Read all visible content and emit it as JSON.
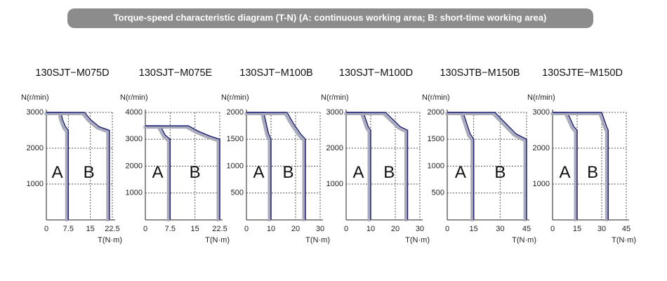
{
  "header": {
    "title": "Torque-speed characteristic diagram (T-N) (A: continuous working area; B: short-time working area)"
  },
  "chart_data": [
    {
      "type": "line",
      "title": "130SJT−M075D",
      "ylabel": "N(r/min)",
      "xlabel": "T(N·m)",
      "annotations": [
        "A",
        "B"
      ],
      "xlim": [
        0,
        22.5
      ],
      "xticks": [
        0,
        7.5,
        15,
        22.5
      ],
      "ylim": [
        0,
        3000
      ],
      "yticks": [
        1000,
        2000,
        3000
      ],
      "grid": true,
      "series": [
        {
          "color": "#1c2078",
          "x": [
            0,
            5,
            5.5,
            6.5,
            7.5,
            7.5
          ],
          "values": [
            3000,
            3000,
            2800,
            2600,
            2500,
            0
          ]
        },
        {
          "color": "#1c2078",
          "x": [
            0,
            13,
            15,
            18,
            21.5,
            21.5
          ],
          "values": [
            3000,
            3000,
            2800,
            2600,
            2500,
            0
          ]
        }
      ]
    },
    {
      "type": "line",
      "title": "130SJT−M075E",
      "ylabel": "N(r/min)",
      "xlabel": "T(N·m)",
      "annotations": [
        "A",
        "B"
      ],
      "xlim": [
        0,
        22.5
      ],
      "xticks": [
        0,
        7.5,
        15,
        22.5
      ],
      "ylim": [
        0,
        4000
      ],
      "yticks": [
        1000,
        2000,
        3000,
        4000
      ],
      "grid": true,
      "series": [
        {
          "color": "#1c2078",
          "x": [
            0,
            4.5,
            6,
            7.5,
            7.5
          ],
          "values": [
            3500,
            3500,
            3150,
            3000,
            0
          ]
        },
        {
          "color": "#1c2078",
          "x": [
            0,
            13,
            16,
            19.5,
            22.5,
            22.5
          ],
          "values": [
            3500,
            3500,
            3300,
            3120,
            3000,
            0
          ]
        }
      ]
    },
    {
      "type": "line",
      "title": "130SJT−M100B",
      "ylabel": "N(r/min)",
      "xlabel": "T(N·m)",
      "annotations": [
        "A",
        "B"
      ],
      "xlim": [
        0,
        30
      ],
      "xticks": [
        0,
        10,
        20,
        30
      ],
      "ylim": [
        0,
        2000
      ],
      "yticks": [
        500,
        1000,
        1500,
        2000
      ],
      "grid": true,
      "series": [
        {
          "color": "#1c2078",
          "x": [
            0,
            7,
            8,
            9,
            10,
            10
          ],
          "values": [
            2000,
            2000,
            1800,
            1600,
            1500,
            0
          ]
        },
        {
          "color": "#1c2078",
          "x": [
            0,
            16.5,
            19,
            22,
            24,
            24
          ],
          "values": [
            2000,
            2000,
            1800,
            1600,
            1500,
            0
          ]
        }
      ]
    },
    {
      "type": "line",
      "title": "130SJT−M100D",
      "ylabel": "N(r/min)",
      "xlabel": "T(N·m)",
      "annotations": [
        "A",
        "B"
      ],
      "xlim": [
        0,
        30
      ],
      "xticks": [
        0,
        10,
        20,
        30
      ],
      "ylim": [
        0,
        3000
      ],
      "yticks": [
        1000,
        2000,
        3000
      ],
      "grid": true,
      "series": [
        {
          "color": "#1c2078",
          "x": [
            0,
            7,
            8,
            9,
            10,
            10
          ],
          "values": [
            3000,
            3000,
            2800,
            2600,
            2500,
            0
          ]
        },
        {
          "color": "#1c2078",
          "x": [
            0,
            16,
            19,
            22,
            25,
            25
          ],
          "values": [
            3000,
            3000,
            2800,
            2600,
            2500,
            0
          ]
        }
      ]
    },
    {
      "type": "line",
      "title": "130SJTB−M150B",
      "ylabel": "N(r/min)",
      "xlabel": "T(N·m)",
      "annotations": [
        "A",
        "B"
      ],
      "xlim": [
        0,
        45
      ],
      "xticks": [
        0,
        15,
        30,
        45
      ],
      "ylim": [
        0,
        2000
      ],
      "yticks": [
        500,
        1000,
        1500,
        2000
      ],
      "grid": true,
      "series": [
        {
          "color": "#1c2078",
          "x": [
            0,
            9,
            11,
            13,
            15,
            15
          ],
          "values": [
            2000,
            2000,
            1800,
            1600,
            1500,
            0
          ]
        },
        {
          "color": "#1c2078",
          "x": [
            0,
            27,
            33,
            39,
            45,
            45
          ],
          "values": [
            2000,
            2000,
            1800,
            1600,
            1500,
            0
          ]
        }
      ]
    },
    {
      "type": "line",
      "title": "130SJTE−M150D",
      "ylabel": "N(r/min)",
      "xlabel": "T(N·m)",
      "annotations": [
        "A",
        "B"
      ],
      "xlim": [
        0,
        45
      ],
      "xticks": [
        0,
        15,
        30,
        45
      ],
      "ylim": [
        0,
        3000
      ],
      "yticks": [
        1000,
        2000,
        3000
      ],
      "grid": true,
      "series": [
        {
          "color": "#1c2078",
          "x": [
            0,
            9,
            11,
            13,
            15,
            15
          ],
          "values": [
            3000,
            3000,
            2800,
            2600,
            2500,
            0
          ]
        },
        {
          "color": "#1c2078",
          "x": [
            0,
            30,
            31.5,
            33,
            34,
            34
          ],
          "values": [
            3000,
            3000,
            2800,
            2600,
            2500,
            0
          ]
        }
      ]
    }
  ]
}
